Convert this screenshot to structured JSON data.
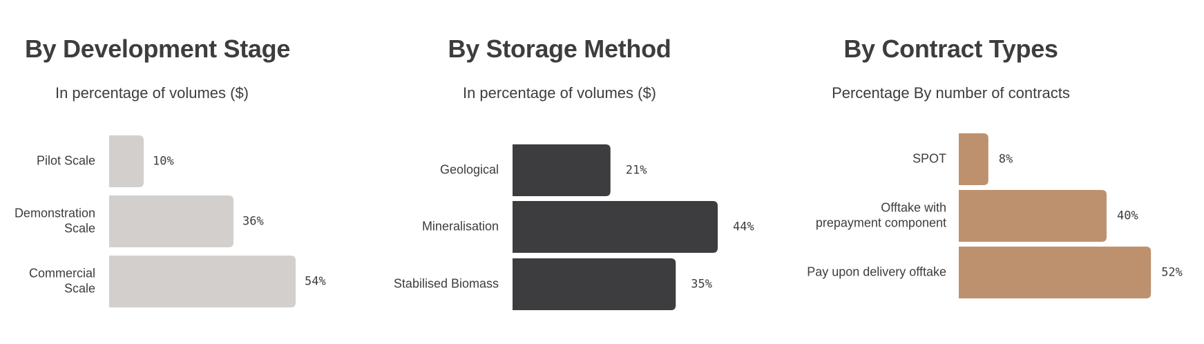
{
  "chart_data": [
    {
      "type": "bar",
      "orientation": "horizontal",
      "title": "By Development Stage",
      "subtitle": "In percentage of volumes ($)",
      "categories": [
        [
          "Pilot Scale"
        ],
        [
          "Demonstration",
          "Scale"
        ],
        [
          "Commercial",
          "Scale"
        ]
      ],
      "values": [
        10,
        36,
        54
      ],
      "value_labels": [
        "10%",
        "36%",
        "54%"
      ],
      "xlim": [
        0,
        60
      ],
      "grid": false,
      "color": "#d2cfcd"
    },
    {
      "type": "bar",
      "orientation": "horizontal",
      "title": "By Storage Method",
      "subtitle": "In percentage of volumes ($)",
      "categories": [
        [
          "Geological"
        ],
        [
          "Mineralisation"
        ],
        [
          "Stabilised Biomass"
        ]
      ],
      "values": [
        21,
        44,
        35
      ],
      "value_labels": [
        "21%",
        "44%",
        "35%"
      ],
      "xlim": [
        0,
        50
      ],
      "grid": false,
      "color": "#3d3c3e"
    },
    {
      "type": "bar",
      "orientation": "horizontal",
      "title": "By Contract Types",
      "subtitle": "Percentage By number of contracts",
      "categories": [
        [
          "SPOT"
        ],
        [
          "Offtake with",
          "prepayment component"
        ],
        [
          "Pay upon delivery offtake"
        ]
      ],
      "values": [
        8,
        40,
        52
      ],
      "value_labels": [
        "8%",
        "40%",
        "52%"
      ],
      "xlim": [
        0,
        60
      ],
      "grid": false,
      "color": "#bd916e"
    }
  ]
}
